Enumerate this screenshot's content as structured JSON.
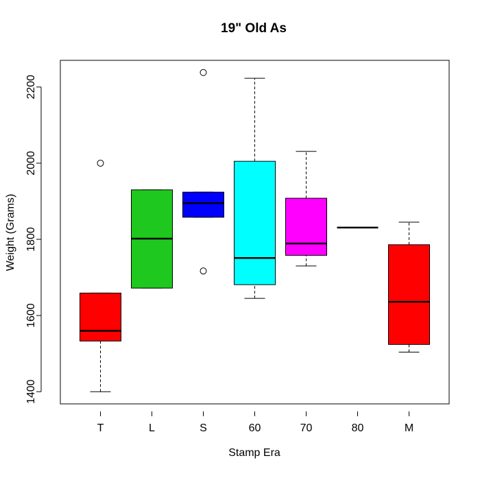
{
  "chart_data": {
    "type": "boxplot",
    "title": "19\" Old As",
    "x_label": "Stamp Era",
    "y_label": "Weight (Grams)",
    "categories": [
      "T",
      "L",
      "S",
      "60",
      "70",
      "80",
      "M"
    ],
    "colors": [
      "#ff0000",
      "#1ec81e",
      "#0000ff",
      "#00ffff",
      "#ff00ff",
      "#ffff00",
      "#ff0000"
    ],
    "whisker_low": [
      1400,
      1672,
      1858,
      1645,
      1730,
      1831,
      1504
    ],
    "q1": [
      1533,
      1672,
      1858,
      1681,
      1758,
      1831,
      1524
    ],
    "median": [
      1560,
      1802,
      1895,
      1751,
      1789,
      1831,
      1636
    ],
    "q3": [
      1659,
      1930,
      1924,
      2005,
      1908,
      1831,
      1786
    ],
    "whisker_high": [
      1659,
      1930,
      1924,
      2223,
      2031,
      1831,
      1845
    ],
    "outliers": [
      [
        2000
      ],
      [],
      [
        2238,
        1717
      ],
      [],
      [],
      [],
      []
    ],
    "ylim": [
      1368,
      2270
    ],
    "yticks": [
      1400,
      1600,
      1800,
      2000,
      2200
    ]
  }
}
